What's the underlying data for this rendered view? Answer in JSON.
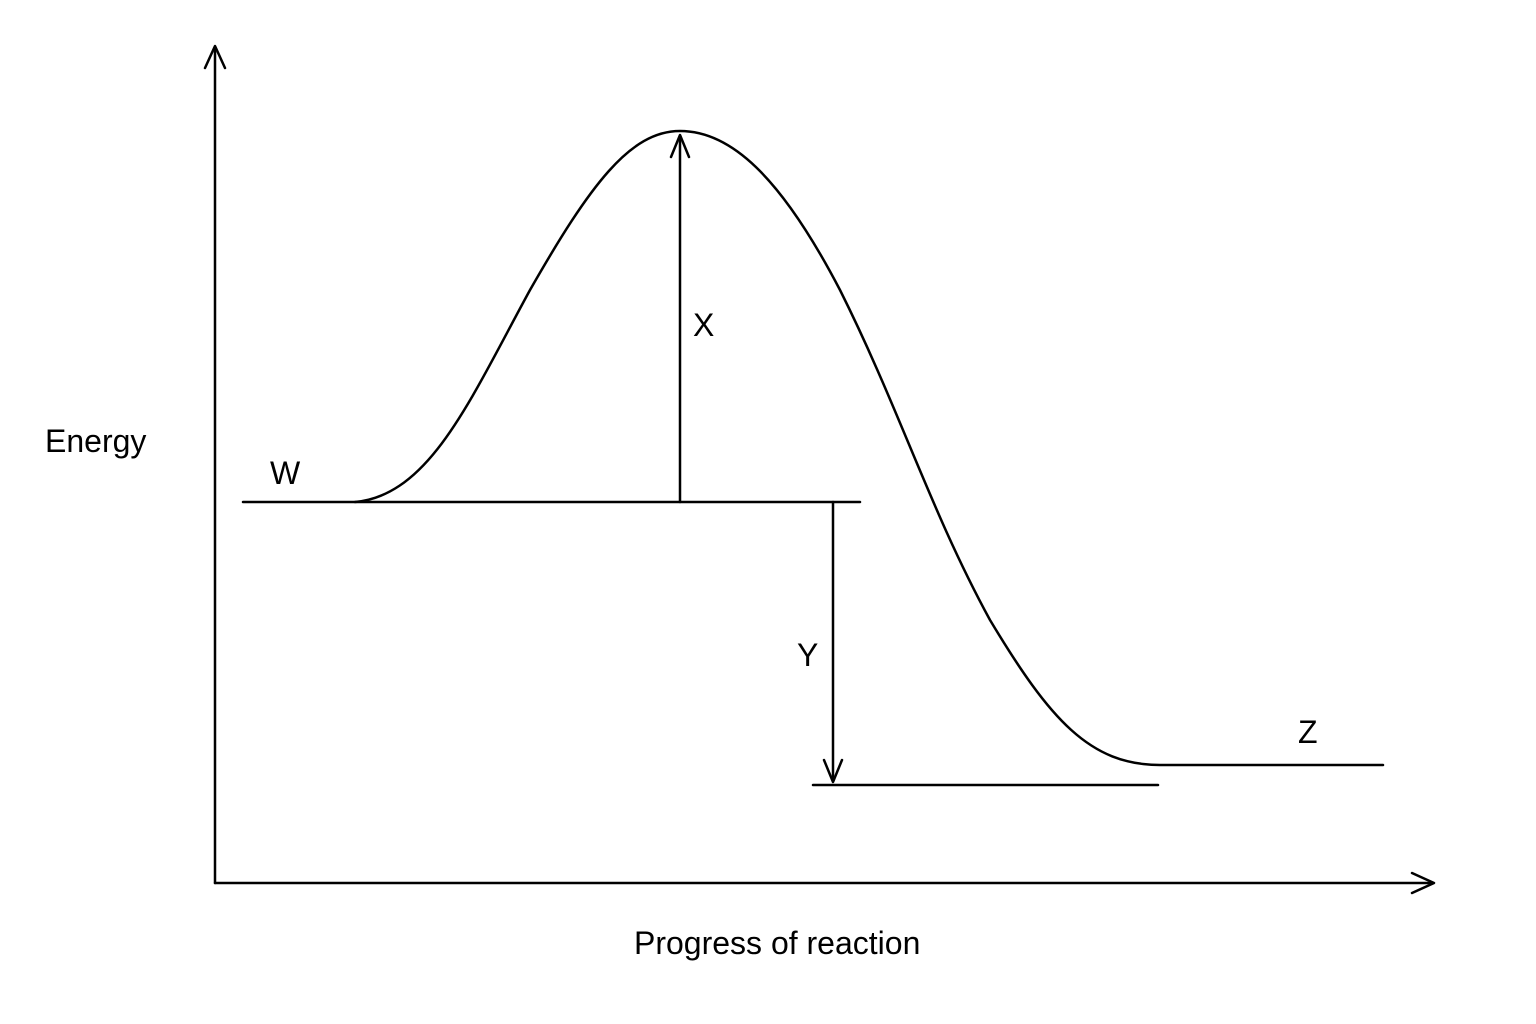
{
  "axes": {
    "y_label": "Energy",
    "x_label": "Progress of reaction"
  },
  "labels": {
    "w": "W",
    "x": "X",
    "y": "Y",
    "z": "Z"
  },
  "colors": {
    "line": "#000000",
    "background": "#ffffff"
  }
}
